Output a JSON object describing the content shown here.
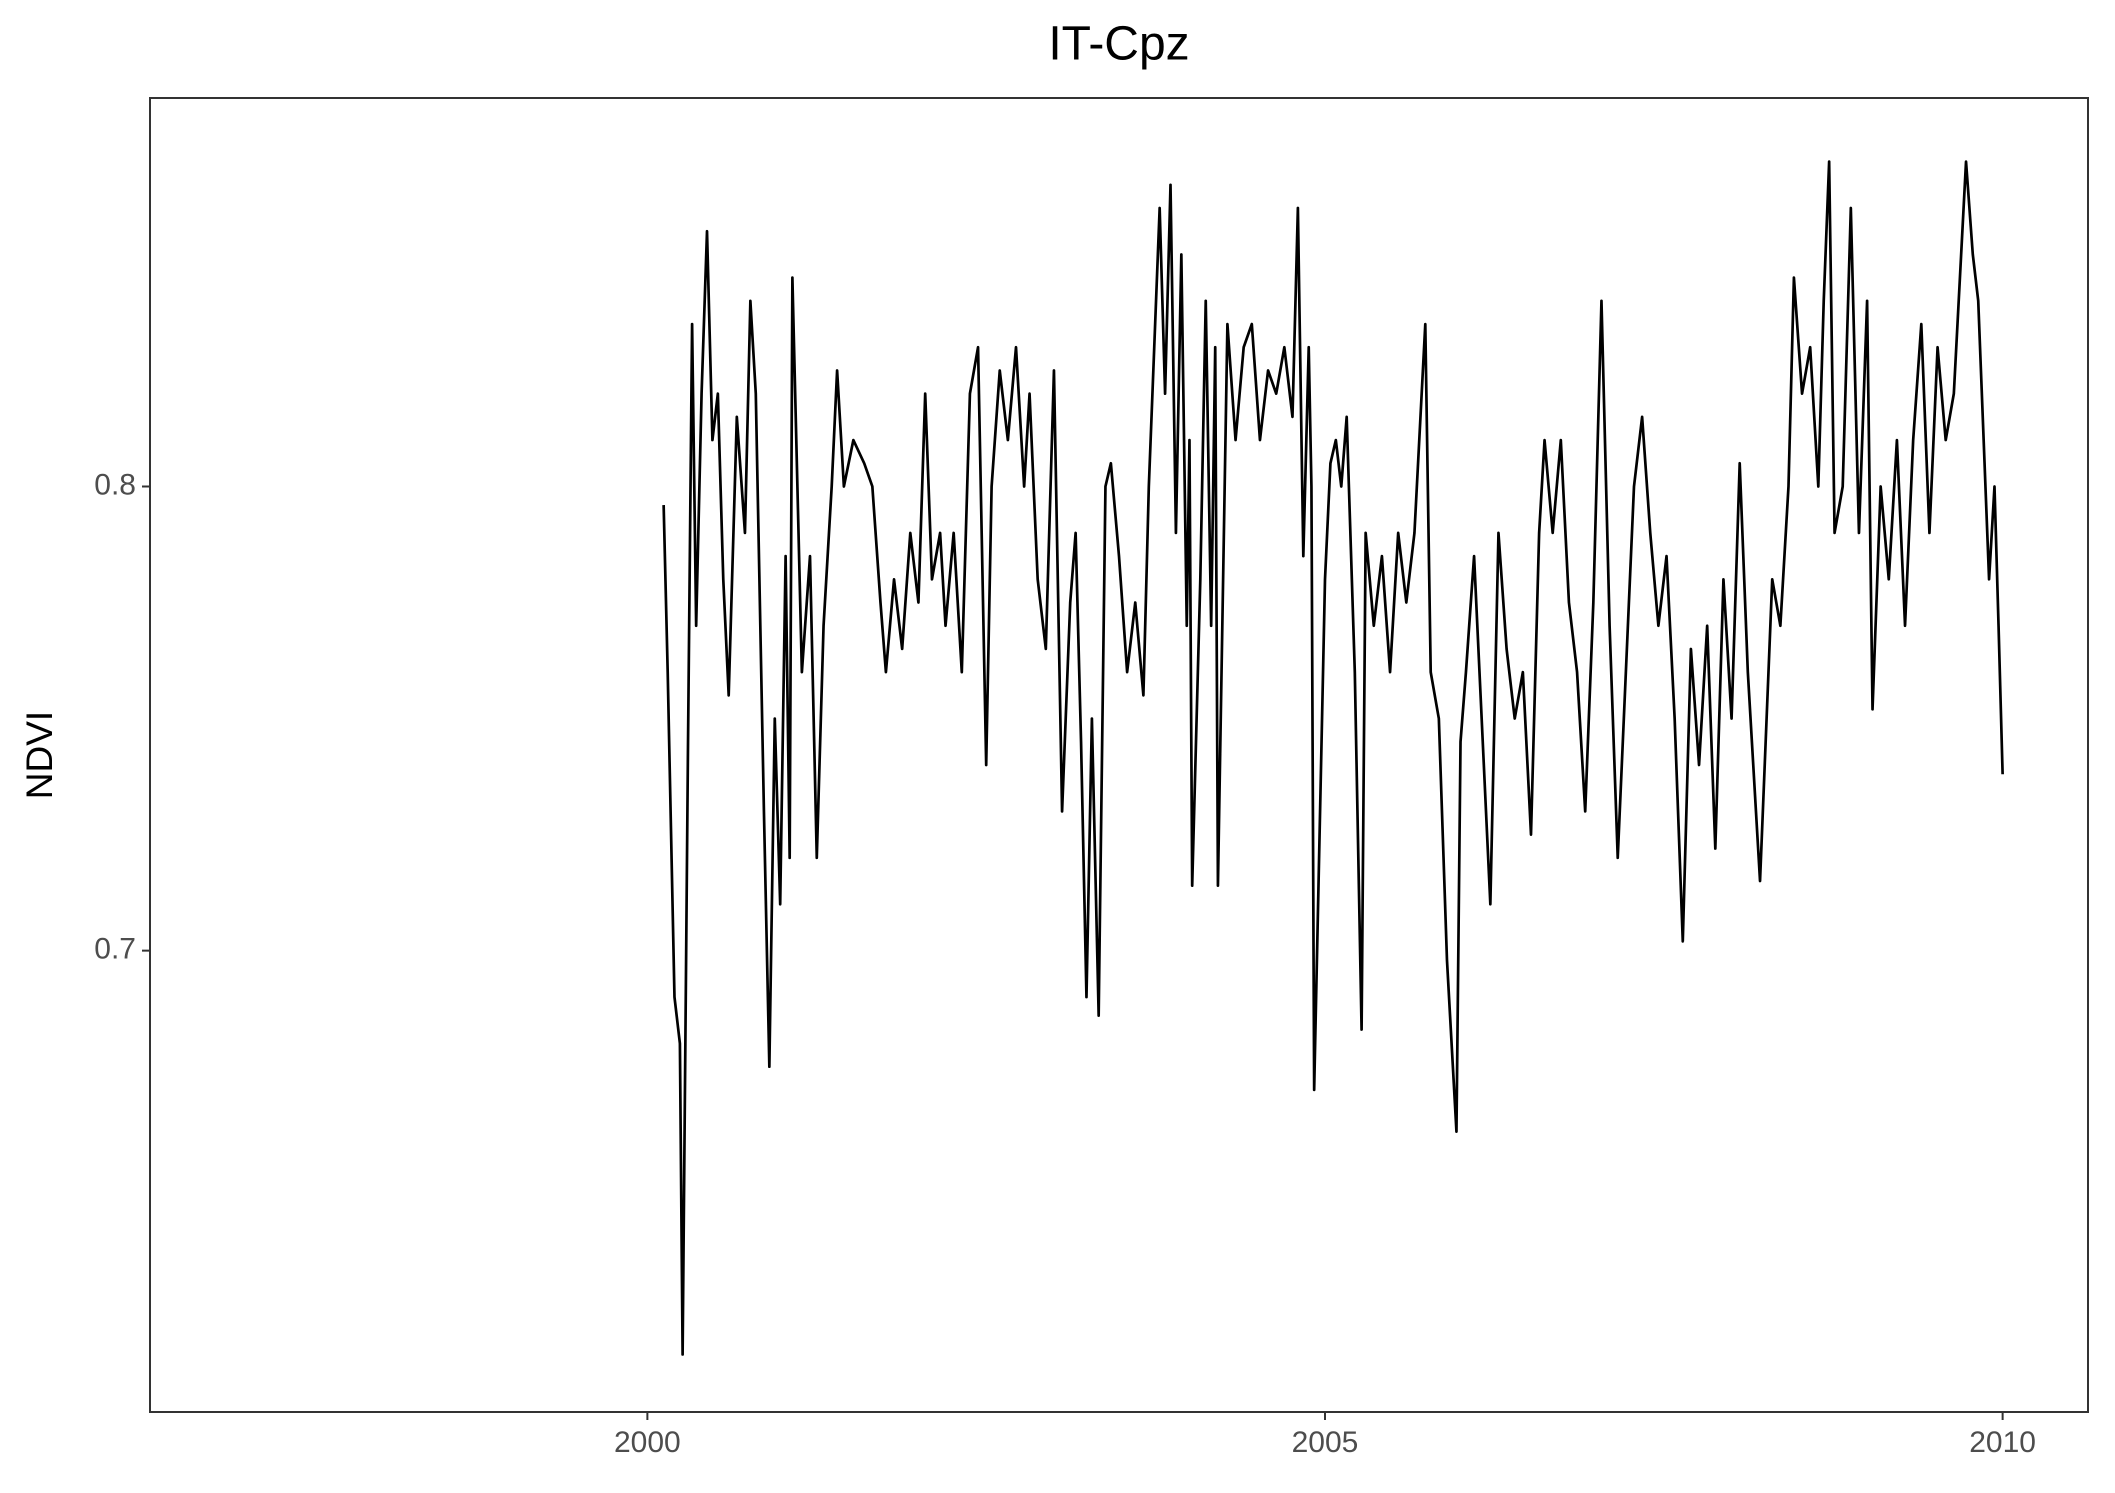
{
  "chart_data": {
    "type": "line",
    "title": "IT-Cpz",
    "y_label": "NDVI",
    "color": "#000000",
    "x": [
      2000.12,
      2000.15,
      2000.2,
      2000.24,
      2000.26,
      2000.3,
      2000.33,
      2000.36,
      2000.4,
      2000.44,
      2000.48,
      2000.52,
      2000.56,
      2000.6,
      2000.66,
      2000.72,
      2000.76,
      2000.8,
      2000.86,
      2000.9,
      2000.94,
      2000.98,
      2001.02,
      2001.05,
      2001.07,
      2001.14,
      2001.2,
      2001.25,
      2001.3,
      2001.36,
      2001.4,
      2001.45,
      2001.52,
      2001.6,
      2001.66,
      2001.72,
      2001.76,
      2001.82,
      2001.88,
      2001.94,
      2002,
      2002.05,
      2002.1,
      2002.16,
      2002.2,
      2002.26,
      2002.32,
      2002.38,
      2002.44,
      2002.5,
      2002.54,
      2002.6,
      2002.66,
      2002.72,
      2002.78,
      2002.82,
      2002.88,
      2002.94,
      2003,
      2003.06,
      2003.12,
      2003.16,
      2003.2,
      2003.24,
      2003.28,
      2003.33,
      2003.38,
      2003.42,
      2003.48,
      2003.54,
      2003.6,
      2003.66,
      2003.7,
      2003.74,
      2003.78,
      2003.82,
      2003.86,
      2003.9,
      2003.94,
      2003.98,
      2004,
      2004.02,
      2004.08,
      2004.12,
      2004.16,
      2004.19,
      2004.21,
      2004.28,
      2004.34,
      2004.4,
      2004.46,
      2004.52,
      2004.58,
      2004.64,
      2004.7,
      2004.76,
      2004.8,
      2004.84,
      2004.88,
      2004.9,
      2004.92,
      2005,
      2005.04,
      2005.08,
      2005.12,
      2005.16,
      2005.22,
      2005.27,
      2005.3,
      2005.36,
      2005.42,
      2005.48,
      2005.54,
      2005.6,
      2005.66,
      2005.74,
      2005.78,
      2005.84,
      2005.9,
      2005.97,
      2006,
      2006.04,
      2006.1,
      2006.22,
      2006.28,
      2006.34,
      2006.4,
      2006.46,
      2006.52,
      2006.58,
      2006.62,
      2006.68,
      2006.74,
      2006.8,
      2006.86,
      2006.92,
      2006.98,
      2007.04,
      2007.1,
      2007.16,
      2007.22,
      2007.28,
      2007.34,
      2007.4,
      2007.46,
      2007.52,
      2007.58,
      2007.64,
      2007.7,
      2007.76,
      2007.82,
      2007.88,
      2007.94,
      2008,
      2008.06,
      2008.12,
      2008.21,
      2008.3,
      2008.36,
      2008.42,
      2008.46,
      2008.52,
      2008.58,
      2008.64,
      2008.68,
      2008.72,
      2008.76,
      2008.82,
      2008.88,
      2008.94,
      2009,
      2009.04,
      2009.1,
      2009.16,
      2009.22,
      2009.28,
      2009.34,
      2009.4,
      2009.46,
      2009.52,
      2009.58,
      2009.64,
      2009.73,
      2009.78,
      2009.82,
      2009.86,
      2009.9,
      2009.94,
      2009.97,
      2010
    ],
    "values": [
      0.796,
      0.76,
      0.69,
      0.68,
      0.613,
      0.745,
      0.835,
      0.77,
      0.82,
      0.855,
      0.81,
      0.82,
      0.78,
      0.755,
      0.815,
      0.79,
      0.84,
      0.82,
      0.73,
      0.675,
      0.75,
      0.71,
      0.785,
      0.72,
      0.845,
      0.76,
      0.785,
      0.72,
      0.77,
      0.8,
      0.825,
      0.8,
      0.81,
      0.805,
      0.8,
      0.775,
      0.76,
      0.78,
      0.765,
      0.79,
      0.775,
      0.82,
      0.78,
      0.79,
      0.77,
      0.79,
      0.76,
      0.82,
      0.83,
      0.74,
      0.8,
      0.825,
      0.81,
      0.83,
      0.8,
      0.82,
      0.78,
      0.765,
      0.825,
      0.73,
      0.775,
      0.79,
      0.745,
      0.69,
      0.75,
      0.686,
      0.8,
      0.805,
      0.785,
      0.76,
      0.775,
      0.755,
      0.8,
      0.83,
      0.86,
      0.82,
      0.865,
      0.79,
      0.85,
      0.77,
      0.81,
      0.714,
      0.78,
      0.84,
      0.77,
      0.83,
      0.714,
      0.835,
      0.81,
      0.83,
      0.835,
      0.81,
      0.825,
      0.82,
      0.83,
      0.815,
      0.86,
      0.785,
      0.83,
      0.8,
      0.67,
      0.78,
      0.805,
      0.81,
      0.8,
      0.815,
      0.76,
      0.683,
      0.79,
      0.77,
      0.785,
      0.76,
      0.79,
      0.775,
      0.79,
      0.835,
      0.76,
      0.75,
      0.698,
      0.661,
      0.745,
      0.76,
      0.785,
      0.71,
      0.79,
      0.765,
      0.75,
      0.76,
      0.725,
      0.79,
      0.81,
      0.79,
      0.81,
      0.775,
      0.76,
      0.73,
      0.775,
      0.84,
      0.77,
      0.72,
      0.76,
      0.8,
      0.815,
      0.79,
      0.77,
      0.785,
      0.75,
      0.702,
      0.765,
      0.74,
      0.77,
      0.722,
      0.78,
      0.75,
      0.805,
      0.76,
      0.715,
      0.78,
      0.77,
      0.8,
      0.845,
      0.82,
      0.83,
      0.8,
      0.84,
      0.87,
      0.79,
      0.8,
      0.86,
      0.79,
      0.84,
      0.752,
      0.8,
      0.78,
      0.81,
      0.77,
      0.81,
      0.835,
      0.79,
      0.83,
      0.81,
      0.82,
      0.87,
      0.85,
      0.84,
      0.81,
      0.78,
      0.8,
      0.77,
      0.738
    ],
    "xlim": [
      1996.33,
      2010.63
    ],
    "xticks": [
      2000,
      2005,
      2010
    ],
    "ylim": [
      0.6006,
      0.8837
    ],
    "yticks": [
      0.7,
      0.8
    ],
    "grid": false
  }
}
